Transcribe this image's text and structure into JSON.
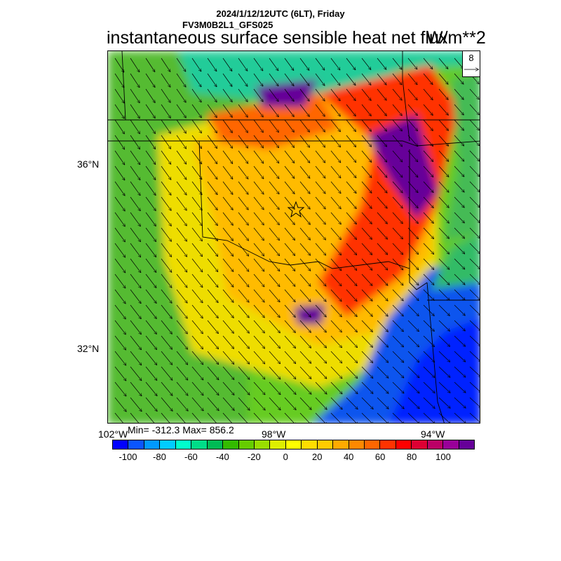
{
  "title": {
    "line1": "2024/1/12/12UTC (6LT), Friday",
    "line2": "FV3M0B2L1_GFS025",
    "main": "instantaneous surface sensible heat net flux",
    "units": "W/m**2"
  },
  "stats": {
    "text": "Min= -312.3 Max= 856.2"
  },
  "axes": {
    "lat_labels": [
      "36°N",
      "32°N"
    ],
    "lon_labels": [
      "102°W",
      "98°W",
      "94°W"
    ]
  },
  "wind_reference": {
    "value": "8"
  },
  "colorbar": {
    "colors": [
      "#0000ff",
      "#0a55ff",
      "#0099ff",
      "#00ccff",
      "#00ffcc",
      "#00dd88",
      "#00bb55",
      "#33bb00",
      "#66cc00",
      "#99dd00",
      "#ddee00",
      "#ffff00",
      "#ffdd00",
      "#ffcc00",
      "#ffaa00",
      "#ff8800",
      "#ff6600",
      "#ff3300",
      "#ff0000",
      "#dd0033",
      "#bb0066",
      "#990099",
      "#660099"
    ],
    "tick_labels": [
      "-100",
      "-80",
      "-60",
      "-40",
      "-20",
      "0",
      "20",
      "40",
      "60",
      "80",
      "100"
    ]
  },
  "map_colors": {
    "cold_blue": "#0044ee",
    "green": "#33bb44",
    "yellow": "#eeee00",
    "orange": "#ffaa00",
    "red": "#ff2200",
    "purple": "#660099"
  }
}
